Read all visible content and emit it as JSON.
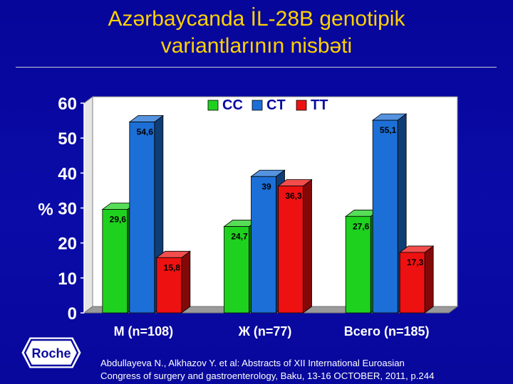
{
  "title": {
    "line1": "Azərbaycanda İL-28B genotipik",
    "line2": "variantlarının nisbəti"
  },
  "logo": {
    "text": "Roche",
    "icon": "roche-hexagon-logo"
  },
  "footnote": {
    "line1": "Abdullayeva N., Alkhazov Y. et al: Abstracts of XII International Euroasian",
    "line2": "Congress of surgery and gastroenterology, Baku, 13-16 OCTOBER, 2011, p.244"
  },
  "colors": {
    "background": "#0a0aa0",
    "title": "#ffd200",
    "CC": "#1fd11f",
    "CT": "#1c6fd6",
    "TT": "#ee1111"
  },
  "chart_data": {
    "type": "bar",
    "style": "3d-clustered",
    "categories": [
      "M (n=108)",
      "Ж (n=77)",
      "Всего (n=185)"
    ],
    "series": [
      {
        "name": "CC",
        "values": [
          29.6,
          24.7,
          27.6
        ],
        "labels": [
          "29,6",
          "24,7",
          "27,6"
        ],
        "color": "#1fd11f"
      },
      {
        "name": "CT",
        "values": [
          54.6,
          39,
          55.1
        ],
        "labels": [
          "54,6",
          "39",
          "55,1"
        ],
        "color": "#1c6fd6"
      },
      {
        "name": "TT",
        "values": [
          15.8,
          36.3,
          17.3
        ],
        "labels": [
          "15,8",
          "36,3",
          "17,3"
        ],
        "color": "#ee1111"
      }
    ],
    "ylabel": "%",
    "ylim": [
      0,
      60
    ],
    "yticks": [
      "0",
      "10",
      "20",
      "30",
      "40",
      "50",
      "60"
    ],
    "legend_position": "top-center",
    "grid": false
  }
}
